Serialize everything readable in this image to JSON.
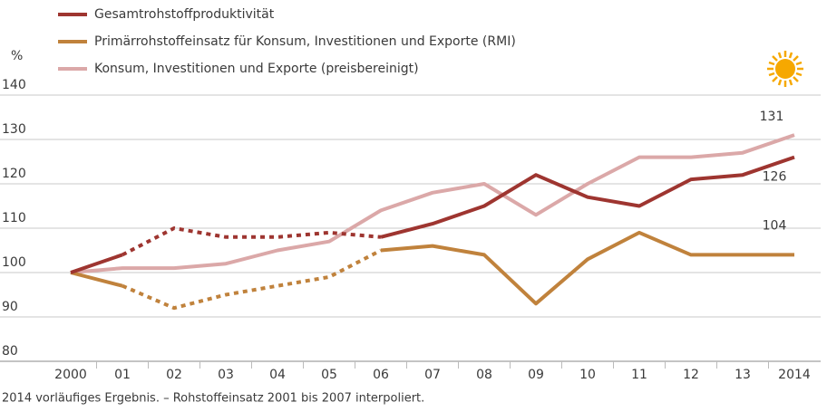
{
  "chart_data": {
    "type": "line",
    "y_label": "%",
    "categories": [
      "2000",
      "01",
      "02",
      "03",
      "04",
      "05",
      "06",
      "07",
      "08",
      "09",
      "10",
      "11",
      "12",
      "13",
      "2014"
    ],
    "series": [
      {
        "name": "Gesamtrohstoffproduktivität",
        "color": "#9e3530",
        "dashed_from": "01",
        "dashed_to": "06",
        "values": [
          100,
          104,
          110,
          108,
          108,
          109,
          108,
          111,
          115,
          122,
          117,
          115,
          121,
          122,
          126
        ]
      },
      {
        "name": "Primärrohstoffeinsatz für Konsum, Investitionen und Exporte (RMI)",
        "color": "#c0823c",
        "dashed_from": "01",
        "dashed_to": "06",
        "values": [
          100,
          97,
          92,
          95,
          97,
          99,
          105,
          106,
          104,
          93,
          103,
          109,
          104,
          104,
          104
        ]
      },
      {
        "name": "Konsum, Investitionen und Exporte (preisbereinigt)",
        "color": "#dba8a8",
        "values": [
          100,
          101,
          101,
          102,
          105,
          107,
          114,
          118,
          120,
          113,
          120,
          126,
          126,
          127,
          131
        ]
      }
    ],
    "ylim": [
      80,
      140
    ],
    "yticks": [
      80,
      90,
      100,
      110,
      120,
      130,
      140
    ],
    "grid": true,
    "footnote": "2014 vorläufiges Ergebnis. – Rohstoffeinsatz 2001 bis 2007 interpoliert."
  }
}
